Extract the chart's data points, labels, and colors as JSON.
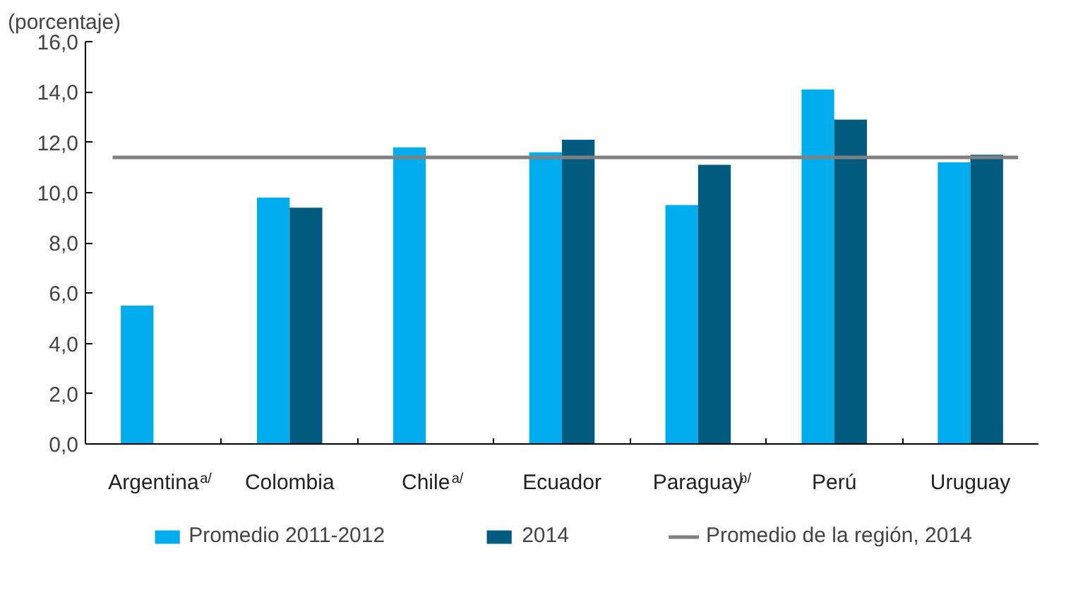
{
  "chart_data": {
    "type": "bar",
    "ylabel": "(porcentaje)",
    "categories": [
      "Argentina$^{a/}$",
      "Colombia",
      "Chile$^{a/}$",
      "Ecuador",
      "Paraguay$^{b/}$",
      "Perú",
      "Uruguay"
    ],
    "series": [
      {
        "name": "Promedio 2011-2012",
        "color": "#00aeef",
        "values": [
          5.5,
          9.8,
          11.8,
          11.6,
          9.5,
          14.1,
          11.2
        ]
      },
      {
        "name": "2014",
        "color": "#005b7f",
        "values": [
          null,
          9.4,
          null,
          12.1,
          11.1,
          12.9,
          11.5
        ]
      }
    ],
    "ylim": [
      0,
      16
    ],
    "yticks": [
      {
        "value": 0,
        "label": "0,0"
      },
      {
        "value": 2,
        "label": "2,0"
      },
      {
        "value": 4,
        "label": "4,0"
      },
      {
        "value": 6,
        "label": "6,0"
      },
      {
        "value": 8,
        "label": "8,0"
      },
      {
        "value": 10,
        "label": "10,0"
      },
      {
        "value": 12,
        "label": "12,0"
      },
      {
        "value": 14,
        "label": "14,0"
      },
      {
        "value": 16,
        "label": "16,0"
      }
    ],
    "ref_lines": [
      {
        "axis": "y",
        "value": 11.4,
        "label": "Promedio de la región, 2014",
        "color": "#808080"
      }
    ],
    "grid": false,
    "legend": "bottom"
  }
}
